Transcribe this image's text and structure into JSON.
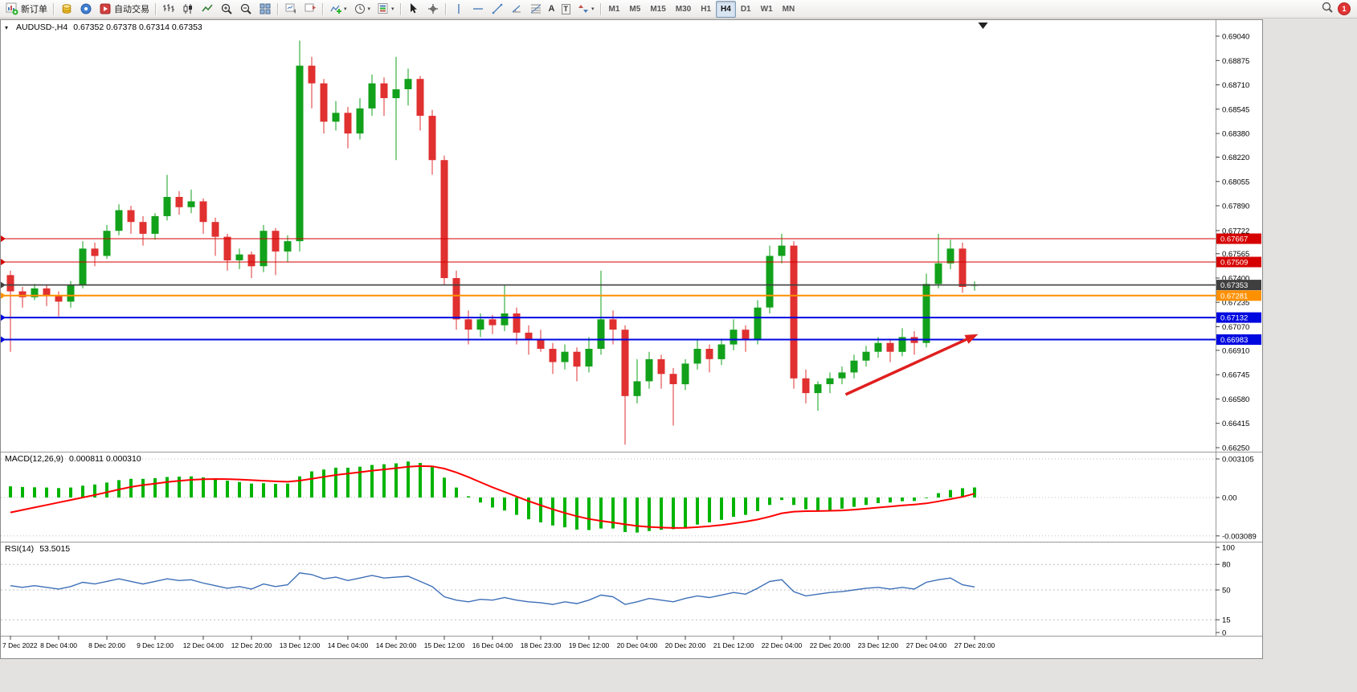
{
  "toolbar": {
    "new_order_label": "新订单",
    "auto_trading_label": "自动交易",
    "text_tool_label": "A",
    "label_tool_label": "T",
    "timeframes": [
      "M1",
      "M5",
      "M15",
      "M30",
      "H1",
      "H4",
      "D1",
      "W1",
      "MN"
    ],
    "active_timeframe": "H4",
    "badge_count": "1"
  },
  "icons": {
    "caret": "▾",
    "collapse": "▾"
  },
  "chart": {
    "title": "AUDUSD-,H4",
    "ohlc": "0.67352 0.67378 0.67314 0.67353",
    "macd_label": "MACD(12,26,9)",
    "macd_values": "0.000811 0.000310",
    "rsi_label": "RSI(14)",
    "rsi_value": "53.5015"
  },
  "chart_data": {
    "type": "candlestick",
    "symbol": "AUDUSD-",
    "period": "H4",
    "colors": {
      "up": "#12a11b",
      "down": "#e03030"
    },
    "price_axis": {
      "min": 0.6625,
      "max": 0.6904,
      "ticks": [
        0.6904,
        0.68875,
        0.6871,
        0.68545,
        0.6838,
        0.6822,
        0.68055,
        0.6789,
        0.67722,
        0.67565,
        0.674,
        0.67235,
        0.6707,
        0.6691,
        0.66745,
        0.6658,
        0.66415,
        0.6625
      ]
    },
    "time_labels": [
      "7 Dec 2022",
      "8 Dec 04:00",
      "8 Dec 20:00",
      "9 Dec 12:00",
      "12 Dec 04:00",
      "12 Dec 20:00",
      "13 Dec 12:00",
      "14 Dec 04:00",
      "14 Dec 20:00",
      "15 Dec 12:00",
      "16 Dec 04:00",
      "18 Dec 23:00",
      "19 Dec 12:00",
      "20 Dec 04:00",
      "20 Dec 20:00",
      "21 Dec 12:00",
      "22 Dec 04:00",
      "22 Dec 20:00",
      "23 Dec 12:00",
      "27 Dec 04:00",
      "27 Dec 20:00"
    ],
    "candles_per_label": 4,
    "candles": [
      [
        0.6742,
        0.6745,
        0.669,
        0.6731
      ],
      [
        0.6731,
        0.6734,
        0.672,
        0.6727
      ],
      [
        0.6727,
        0.6736,
        0.6725,
        0.6733
      ],
      [
        0.6733,
        0.6735,
        0.6721,
        0.6728
      ],
      [
        0.6728,
        0.6731,
        0.6714,
        0.6724
      ],
      [
        0.6724,
        0.6738,
        0.672,
        0.6735
      ],
      [
        0.6735,
        0.6765,
        0.6733,
        0.676
      ],
      [
        0.676,
        0.6764,
        0.6748,
        0.6755
      ],
      [
        0.6755,
        0.6776,
        0.6753,
        0.6772
      ],
      [
        0.6772,
        0.679,
        0.6769,
        0.6786
      ],
      [
        0.6786,
        0.6789,
        0.677,
        0.6778
      ],
      [
        0.6778,
        0.6782,
        0.6762,
        0.677
      ],
      [
        0.677,
        0.6784,
        0.6766,
        0.6782
      ],
      [
        0.6782,
        0.681,
        0.6779,
        0.6795
      ],
      [
        0.6795,
        0.6799,
        0.6783,
        0.6788
      ],
      [
        0.6788,
        0.68,
        0.6784,
        0.6792
      ],
      [
        0.6792,
        0.6794,
        0.677,
        0.6778
      ],
      [
        0.6778,
        0.6781,
        0.6755,
        0.6768
      ],
      [
        0.6768,
        0.677,
        0.6745,
        0.6752
      ],
      [
        0.6752,
        0.676,
        0.6746,
        0.6756
      ],
      [
        0.6756,
        0.6758,
        0.674,
        0.6748
      ],
      [
        0.6748,
        0.6776,
        0.6744,
        0.6772
      ],
      [
        0.6772,
        0.6774,
        0.6742,
        0.6758
      ],
      [
        0.6758,
        0.6769,
        0.6751,
        0.6765
      ],
      [
        0.6765,
        0.6901,
        0.6758,
        0.6884
      ],
      [
        0.6884,
        0.689,
        0.6855,
        0.6872
      ],
      [
        0.6872,
        0.6875,
        0.6838,
        0.6846
      ],
      [
        0.6846,
        0.686,
        0.684,
        0.6852
      ],
      [
        0.6852,
        0.6856,
        0.6828,
        0.6838
      ],
      [
        0.6838,
        0.6862,
        0.6834,
        0.6855
      ],
      [
        0.6855,
        0.6878,
        0.685,
        0.6872
      ],
      [
        0.6872,
        0.6876,
        0.685,
        0.6862
      ],
      [
        0.6862,
        0.689,
        0.682,
        0.6868
      ],
      [
        0.6868,
        0.6882,
        0.6857,
        0.6875
      ],
      [
        0.6875,
        0.6877,
        0.684,
        0.685
      ],
      [
        0.685,
        0.6854,
        0.681,
        0.682
      ],
      [
        0.682,
        0.6823,
        0.6735,
        0.674
      ],
      [
        0.674,
        0.6745,
        0.6705,
        0.6712
      ],
      [
        0.6712,
        0.6718,
        0.6695,
        0.6705
      ],
      [
        0.6705,
        0.6716,
        0.67,
        0.6712
      ],
      [
        0.6712,
        0.6715,
        0.6702,
        0.6708
      ],
      [
        0.6708,
        0.6735,
        0.6704,
        0.6716
      ],
      [
        0.6716,
        0.672,
        0.6695,
        0.6703
      ],
      [
        0.6703,
        0.6708,
        0.6688,
        0.6698
      ],
      [
        0.6698,
        0.6705,
        0.669,
        0.6692
      ],
      [
        0.6692,
        0.6696,
        0.6675,
        0.6683
      ],
      [
        0.6683,
        0.6695,
        0.6678,
        0.669
      ],
      [
        0.669,
        0.6693,
        0.667,
        0.668
      ],
      [
        0.668,
        0.67,
        0.6676,
        0.6692
      ],
      [
        0.6692,
        0.6745,
        0.6688,
        0.6712
      ],
      [
        0.6712,
        0.6718,
        0.6695,
        0.6705
      ],
      [
        0.6705,
        0.6708,
        0.6627,
        0.666
      ],
      [
        0.666,
        0.6685,
        0.6655,
        0.667
      ],
      [
        0.667,
        0.669,
        0.6665,
        0.6685
      ],
      [
        0.6685,
        0.6688,
        0.6665,
        0.6675
      ],
      [
        0.6675,
        0.6679,
        0.664,
        0.6668
      ],
      [
        0.6668,
        0.6685,
        0.6664,
        0.6682
      ],
      [
        0.6682,
        0.6698,
        0.6678,
        0.6692
      ],
      [
        0.6692,
        0.6695,
        0.6676,
        0.6685
      ],
      [
        0.6685,
        0.6699,
        0.6681,
        0.6695
      ],
      [
        0.6695,
        0.6712,
        0.6691,
        0.6705
      ],
      [
        0.6705,
        0.6708,
        0.669,
        0.6698
      ],
      [
        0.6698,
        0.6725,
        0.6695,
        0.672
      ],
      [
        0.672,
        0.6762,
        0.6716,
        0.6755
      ],
      [
        0.6755,
        0.677,
        0.675,
        0.6762
      ],
      [
        0.6762,
        0.6765,
        0.6665,
        0.6672
      ],
      [
        0.6672,
        0.6678,
        0.6655,
        0.6662
      ],
      [
        0.6662,
        0.667,
        0.665,
        0.6668
      ],
      [
        0.6668,
        0.6676,
        0.6662,
        0.6672
      ],
      [
        0.6672,
        0.668,
        0.6668,
        0.6676
      ],
      [
        0.6676,
        0.6688,
        0.6672,
        0.6684
      ],
      [
        0.6684,
        0.6694,
        0.668,
        0.669
      ],
      [
        0.669,
        0.67,
        0.6686,
        0.6696
      ],
      [
        0.6696,
        0.6699,
        0.6683,
        0.669
      ],
      [
        0.669,
        0.6706,
        0.6687,
        0.67
      ],
      [
        0.67,
        0.6704,
        0.6688,
        0.6696
      ],
      [
        0.6696,
        0.6743,
        0.6693,
        0.6736
      ],
      [
        0.6736,
        0.677,
        0.6733,
        0.675
      ],
      [
        0.675,
        0.6766,
        0.6746,
        0.676
      ],
      [
        0.676,
        0.6764,
        0.673,
        0.6734
      ],
      [
        0.67352,
        0.67378,
        0.67314,
        0.67353
      ]
    ],
    "hlines": [
      {
        "value": 0.67667,
        "label": "0.67667",
        "color": "#d60000",
        "width": 1
      },
      {
        "value": 0.67509,
        "label": "0.67509",
        "color": "#d60000",
        "width": 1
      },
      {
        "value": 0.67353,
        "label": "0.67353",
        "color": "#3f3f3f",
        "width": 1.6
      },
      {
        "value": 0.67281,
        "label": "0.67281",
        "color": "#ff9000",
        "width": 2
      },
      {
        "value": 0.67132,
        "label": "0.67132",
        "color": "#0008e0",
        "width": 2
      },
      {
        "value": 0.66983,
        "label": "0.66983",
        "color": "#0008e0",
        "width": 2
      }
    ],
    "macd": {
      "histogram_color": "#00b400",
      "signal_color": "#ff0000",
      "axis_ticks": [
        0.003105,
        0,
        -0.003089
      ],
      "axis_tick_labels": [
        "0.003105",
        "0.00",
        "-0.003089"
      ],
      "values": [
        0.0009,
        0.00085,
        0.00082,
        0.0008,
        0.00076,
        0.0008,
        0.00095,
        0.00105,
        0.0012,
        0.0014,
        0.0015,
        0.0015,
        0.00155,
        0.00165,
        0.00168,
        0.0017,
        0.00162,
        0.0015,
        0.00135,
        0.00125,
        0.00112,
        0.00115,
        0.0011,
        0.00112,
        0.0017,
        0.0021,
        0.00225,
        0.0024,
        0.0024,
        0.00248,
        0.00262,
        0.00268,
        0.00275,
        0.0029,
        0.00278,
        0.00245,
        0.0016,
        0.0008,
        0.0001,
        -0.0004,
        -0.0008,
        -0.00105,
        -0.0014,
        -0.00175,
        -0.002,
        -0.00225,
        -0.0024,
        -0.00258,
        -0.00262,
        -0.0025,
        -0.0025,
        -0.00278,
        -0.00282,
        -0.0027,
        -0.0026,
        -0.00255,
        -0.0024,
        -0.00218,
        -0.002,
        -0.0018,
        -0.00155,
        -0.0014,
        -0.0011,
        -0.0006,
        -0.0002,
        -0.0006,
        -0.00095,
        -0.00105,
        -0.001,
        -0.0009,
        -0.00075,
        -0.0006,
        -0.00045,
        -0.0004,
        -0.0003,
        -0.00028,
        -5e-05,
        0.00035,
        0.0006,
        0.00075,
        0.000811
      ],
      "signal": [
        -0.0012,
        -0.001,
        -0.0008,
        -0.0006,
        -0.0004,
        -0.0002,
        0.0,
        0.0002,
        0.00042,
        0.00065,
        0.00085,
        0.001,
        0.00112,
        0.00124,
        0.00134,
        0.00142,
        0.00147,
        0.00149,
        0.00148,
        0.00145,
        0.0014,
        0.00135,
        0.0013,
        0.00127,
        0.00136,
        0.00151,
        0.00166,
        0.00181,
        0.00193,
        0.00204,
        0.00216,
        0.00226,
        0.00236,
        0.00247,
        0.00253,
        0.00251,
        0.00233,
        0.00202,
        0.00164,
        0.00123,
        0.00082,
        0.00045,
        8e-05,
        -0.00029,
        -0.00063,
        -0.00095,
        -0.00124,
        -0.00151,
        -0.00173,
        -0.00188,
        -0.00201,
        -0.00216,
        -0.00229,
        -0.00237,
        -0.00242,
        -0.00245,
        -0.00244,
        -0.00239,
        -0.00231,
        -0.00221,
        -0.00208,
        -0.00194,
        -0.00177,
        -0.00154,
        -0.00127,
        -0.00114,
        -0.0011,
        -0.00109,
        -0.00107,
        -0.00104,
        -0.00098,
        -0.0009,
        -0.00081,
        -0.00073,
        -0.00064,
        -0.00057,
        -0.00047,
        -0.00031,
        -0.00013,
        5e-05,
        0.00031
      ]
    },
    "rsi": {
      "line_color": "#3d6fb8",
      "axis_ticks": [
        100,
        80,
        50,
        15,
        0
      ],
      "levels": [
        80,
        50,
        15
      ],
      "values": [
        55,
        53,
        55,
        53,
        51,
        54,
        59,
        57,
        60,
        63,
        60,
        57,
        60,
        63,
        61,
        62,
        58,
        55,
        52,
        54,
        51,
        57,
        54,
        56,
        70,
        68,
        63,
        65,
        61,
        64,
        67,
        64,
        65,
        66,
        60,
        54,
        42,
        38,
        36,
        39,
        38,
        41,
        38,
        36,
        35,
        33,
        36,
        34,
        38,
        44,
        42,
        33,
        36,
        40,
        38,
        36,
        40,
        43,
        41,
        44,
        47,
        45,
        52,
        60,
        62,
        48,
        43,
        45,
        47,
        48,
        50,
        52,
        53,
        51,
        53,
        51,
        59,
        62,
        64,
        56,
        53.5
      ]
    },
    "arrow": {
      "x1_candle": 69.3,
      "y1_price": 0.6661,
      "x2_candle": 80.3,
      "y2_price": 0.6702,
      "color": "#e01f1f",
      "width": 3.5
    },
    "shift_marker_candle": 80.7
  }
}
